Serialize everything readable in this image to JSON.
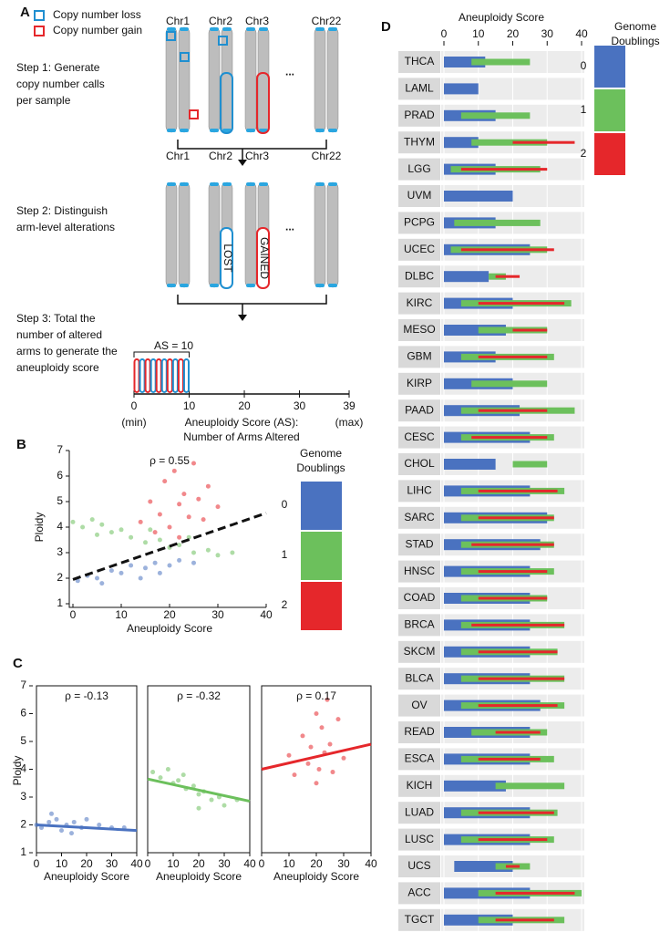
{
  "diagram": {
    "panel_label": "A",
    "legend": [
      "Copy number loss",
      "Copy number gain"
    ],
    "chromosomes": [
      "Chr1",
      "Chr2",
      "Chr3",
      "Chr22"
    ],
    "ellipsis": "...",
    "steps": [
      [
        "Step 1: Generate",
        "copy number calls",
        "per sample"
      ],
      [
        "Step 2: Distinguish",
        "arm-level alterations"
      ],
      [
        "Step 3: Total the",
        "number of altered",
        "arms to generate the",
        "aneuploidy score"
      ]
    ],
    "lost": "LOST",
    "gained": "GAINED",
    "as_value": 10,
    "as_label": "AS = 10",
    "xlim": [
      0,
      39
    ],
    "xticks": [
      0,
      10,
      20,
      30,
      39
    ],
    "min_label": "(min)",
    "max_label": "(max)",
    "xlabel": [
      "Aneuploidy Score (AS):",
      "Number of Arms Altered"
    ]
  },
  "chart_data": [
    {
      "type": "scatter",
      "panel_label": "B",
      "annotation": "ρ = 0.55",
      "xlabel": "Aneuploidy Score",
      "ylabel": "Ploidy",
      "xlim": [
        0,
        40
      ],
      "ylim": [
        1,
        7
      ],
      "xticks": [
        0,
        10,
        20,
        30,
        40
      ],
      "yticks": [
        1,
        2,
        3,
        4,
        5,
        6,
        7
      ],
      "legend_title": [
        "Genome",
        "Doublings"
      ],
      "series": [
        {
          "name": "0",
          "color": "#4a72c0",
          "x": [
            1,
            3,
            5,
            8,
            10,
            12,
            15,
            17,
            20,
            22,
            25,
            6,
            14,
            18
          ],
          "values": [
            1.9,
            2.1,
            2.0,
            2.3,
            2.2,
            2.5,
            2.4,
            2.6,
            2.5,
            2.7,
            2.6,
            1.8,
            2.0,
            2.2
          ]
        },
        {
          "name": "1",
          "color": "#6cc05c",
          "x": [
            0,
            2,
            4,
            6,
            8,
            10,
            12,
            15,
            18,
            20,
            22,
            25,
            28,
            30,
            33,
            5,
            16,
            24
          ],
          "values": [
            4.2,
            4.0,
            4.3,
            4.1,
            3.8,
            3.9,
            3.6,
            3.4,
            3.5,
            3.2,
            3.3,
            3.0,
            3.1,
            2.9,
            3.0,
            3.7,
            3.9,
            3.6
          ]
        },
        {
          "name": "2",
          "color": "#e5272b",
          "x": [
            14,
            16,
            18,
            19,
            20,
            21,
            22,
            23,
            24,
            25,
            26,
            27,
            28,
            30,
            17,
            22
          ],
          "values": [
            4.2,
            5.0,
            4.5,
            5.8,
            4.0,
            6.2,
            4.9,
            5.3,
            4.4,
            6.5,
            5.1,
            4.3,
            5.6,
            4.8,
            3.8,
            3.6
          ]
        }
      ],
      "trend": {
        "color": "#111111",
        "dashed": true,
        "x": [
          0,
          40
        ],
        "values": [
          1.95,
          4.55
        ]
      }
    },
    {
      "type": "scatter",
      "panel_label": "C",
      "annotation": "ρ = -0.13",
      "xlabel": "Aneuploidy Score",
      "ylabel": "Ploidy",
      "xlim": [
        0,
        40
      ],
      "ylim": [
        1,
        7
      ],
      "xticks": [
        0,
        10,
        20,
        30,
        40
      ],
      "yticks": [
        1,
        2,
        3,
        4,
        5,
        6,
        7
      ],
      "series": [
        {
          "name": "0",
          "color": "#4a72c0",
          "x": [
            0,
            2,
            5,
            8,
            10,
            12,
            15,
            18,
            20,
            25,
            30,
            35,
            6,
            14
          ],
          "values": [
            2.0,
            1.9,
            2.1,
            2.2,
            1.8,
            2.0,
            2.1,
            1.9,
            2.2,
            2.0,
            1.9,
            1.9,
            2.4,
            1.7
          ]
        }
      ],
      "trend": {
        "color": "#4a72c0",
        "dashed": false,
        "x": [
          0,
          40
        ],
        "values": [
          2.0,
          1.8
        ]
      }
    },
    {
      "type": "scatter",
      "annotation": "ρ = -0.32",
      "xlabel": "Aneuploidy Score",
      "xlim": [
        0,
        40
      ],
      "ylim": [
        1,
        7
      ],
      "xticks": [
        0,
        10,
        20,
        30,
        40
      ],
      "series": [
        {
          "name": "1",
          "color": "#6cc05c",
          "x": [
            2,
            5,
            8,
            10,
            12,
            15,
            18,
            20,
            22,
            25,
            28,
            30,
            35,
            14,
            20
          ],
          "values": [
            3.9,
            3.7,
            4.0,
            3.5,
            3.6,
            3.3,
            3.4,
            3.1,
            3.2,
            2.9,
            3.0,
            2.7,
            2.9,
            3.8,
            2.6
          ]
        }
      ],
      "trend": {
        "color": "#6cc05c",
        "dashed": false,
        "x": [
          0,
          40
        ],
        "values": [
          3.65,
          2.85
        ]
      }
    },
    {
      "type": "scatter",
      "annotation": "ρ = 0.17",
      "xlabel": "Aneuploidy Score",
      "xlim": [
        0,
        40
      ],
      "ylim": [
        1,
        7
      ],
      "xticks": [
        0,
        10,
        20,
        30,
        40
      ],
      "series": [
        {
          "name": "2",
          "color": "#e5272b",
          "x": [
            10,
            12,
            15,
            17,
            18,
            20,
            21,
            22,
            23,
            25,
            26,
            28,
            30,
            20,
            24
          ],
          "values": [
            4.5,
            3.8,
            5.2,
            4.2,
            4.8,
            6.0,
            4.0,
            5.5,
            4.6,
            4.9,
            3.9,
            5.8,
            4.4,
            3.5,
            6.5
          ]
        }
      ],
      "trend": {
        "color": "#e5272b",
        "dashed": false,
        "x": [
          0,
          40
        ],
        "values": [
          4.0,
          4.9
        ]
      }
    },
    {
      "type": "range",
      "panel_label": "D",
      "title": "Aneuploidy Score",
      "xlim": [
        0,
        40
      ],
      "xticks": [
        0,
        10,
        20,
        30,
        40
      ],
      "grid": true,
      "legend_title": [
        "Genome",
        "Doublings"
      ],
      "categories": [
        "THCA",
        "LAML",
        "PRAD",
        "THYM",
        "LGG",
        "UVM",
        "PCPG",
        "UCEC",
        "DLBC",
        "KIRC",
        "MESO",
        "GBM",
        "KIRP",
        "PAAD",
        "CESC",
        "CHOL",
        "LIHC",
        "SARC",
        "STAD",
        "HNSC",
        "COAD",
        "BRCA",
        "SKCM",
        "BLCA",
        "OV",
        "READ",
        "ESCA",
        "KICH",
        "LUAD",
        "LUSC",
        "UCS",
        "ACC",
        "TGCT"
      ],
      "series": [
        {
          "name": "0",
          "color": "#4a72c0",
          "values": [
            [
              0,
              12
            ],
            [
              0,
              10
            ],
            [
              0,
              15
            ],
            [
              0,
              10
            ],
            [
              0,
              15
            ],
            [
              0,
              20
            ],
            [
              0,
              15
            ],
            [
              0,
              25
            ],
            [
              0,
              13
            ],
            [
              0,
              20
            ],
            [
              0,
              18
            ],
            [
              0,
              15
            ],
            [
              0,
              20
            ],
            [
              0,
              22
            ],
            [
              0,
              25
            ],
            [
              0,
              15
            ],
            [
              0,
              25
            ],
            [
              0,
              30
            ],
            [
              0,
              28
            ],
            [
              0,
              25
            ],
            [
              0,
              25
            ],
            [
              0,
              25
            ],
            [
              0,
              25
            ],
            [
              0,
              25
            ],
            [
              0,
              28
            ],
            [
              0,
              25
            ],
            [
              0,
              25
            ],
            [
              0,
              18
            ],
            [
              0,
              25
            ],
            [
              0,
              25
            ],
            [
              3,
              20
            ],
            [
              0,
              25
            ],
            [
              0,
              20
            ]
          ]
        },
        {
          "name": "1",
          "color": "#6cc05c",
          "values": [
            [
              8,
              25
            ],
            null,
            [
              5,
              25
            ],
            [
              8,
              30
            ],
            [
              2,
              28
            ],
            null,
            [
              3,
              28
            ],
            [
              2,
              30
            ],
            [
              13,
              18
            ],
            [
              5,
              37
            ],
            [
              10,
              30
            ],
            [
              5,
              32
            ],
            [
              8,
              30
            ],
            [
              5,
              38
            ],
            [
              5,
              32
            ],
            [
              20,
              30
            ],
            [
              5,
              35
            ],
            [
              5,
              32
            ],
            [
              5,
              32
            ],
            [
              5,
              32
            ],
            [
              5,
              30
            ],
            [
              5,
              35
            ],
            [
              5,
              33
            ],
            [
              5,
              35
            ],
            [
              5,
              35
            ],
            [
              8,
              30
            ],
            [
              5,
              32
            ],
            [
              15,
              35
            ],
            [
              5,
              33
            ],
            [
              5,
              32
            ],
            [
              15,
              25
            ],
            [
              10,
              40
            ],
            [
              10,
              35
            ]
          ]
        },
        {
          "name": "2",
          "color": "#e5272b",
          "values": [
            null,
            null,
            null,
            [
              20,
              38
            ],
            [
              5,
              30
            ],
            null,
            null,
            [
              5,
              32
            ],
            [
              15,
              22
            ],
            [
              10,
              35
            ],
            [
              20,
              30
            ],
            [
              10,
              30
            ],
            null,
            [
              10,
              30
            ],
            [
              8,
              30
            ],
            null,
            [
              10,
              33
            ],
            [
              10,
              32
            ],
            [
              8,
              32
            ],
            [
              10,
              30
            ],
            [
              10,
              30
            ],
            [
              8,
              35
            ],
            [
              10,
              33
            ],
            [
              10,
              35
            ],
            [
              10,
              33
            ],
            [
              15,
              28
            ],
            [
              10,
              28
            ],
            null,
            [
              10,
              32
            ],
            [
              10,
              30
            ],
            [
              18,
              22
            ],
            [
              15,
              38
            ],
            [
              15,
              32
            ]
          ]
        }
      ]
    }
  ]
}
